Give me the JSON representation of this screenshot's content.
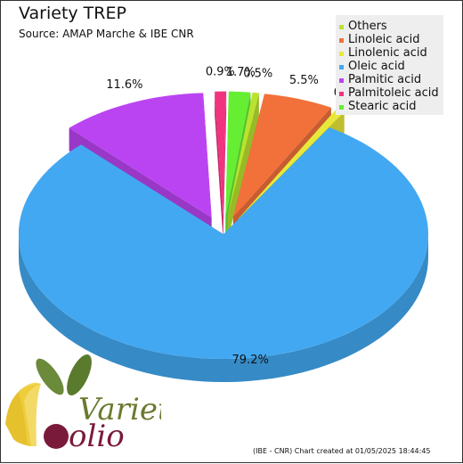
{
  "chart_data": {
    "type": "pie",
    "title": "Variety TREP",
    "subtitle": "Source: AMAP Marche & IBE CNR",
    "legend_position": "top-right",
    "slices": [
      {
        "name": "Others",
        "value": 0.5,
        "label": "0.5%",
        "color": "#b9e32e"
      },
      {
        "name": "Linoleic acid",
        "value": 5.5,
        "label": "5.5%",
        "color": "#f2703a"
      },
      {
        "name": "Linolenic acid",
        "value": 0.7,
        "label": "0.7%",
        "color": "#e8e83a"
      },
      {
        "name": "Oleic acid",
        "value": 79.2,
        "label": "79.2%",
        "color": "#42a8f2"
      },
      {
        "name": "Palmitic acid",
        "value": 11.6,
        "label": "11.6%",
        "color": "#bb44f2"
      },
      {
        "name": "Palmitoleic acid",
        "value": 0.9,
        "label": "0.9%",
        "color": "#f2337f"
      },
      {
        "name": "Stearic acid",
        "value": 1.7,
        "label": "1.7%",
        "color": "#66ee33"
      }
    ]
  },
  "footer": "(IBE - CNR) Chart created at 01/05/2025 18:44:45",
  "logo": {
    "text_top": "Varietà",
    "text_bottom": "olio"
  }
}
